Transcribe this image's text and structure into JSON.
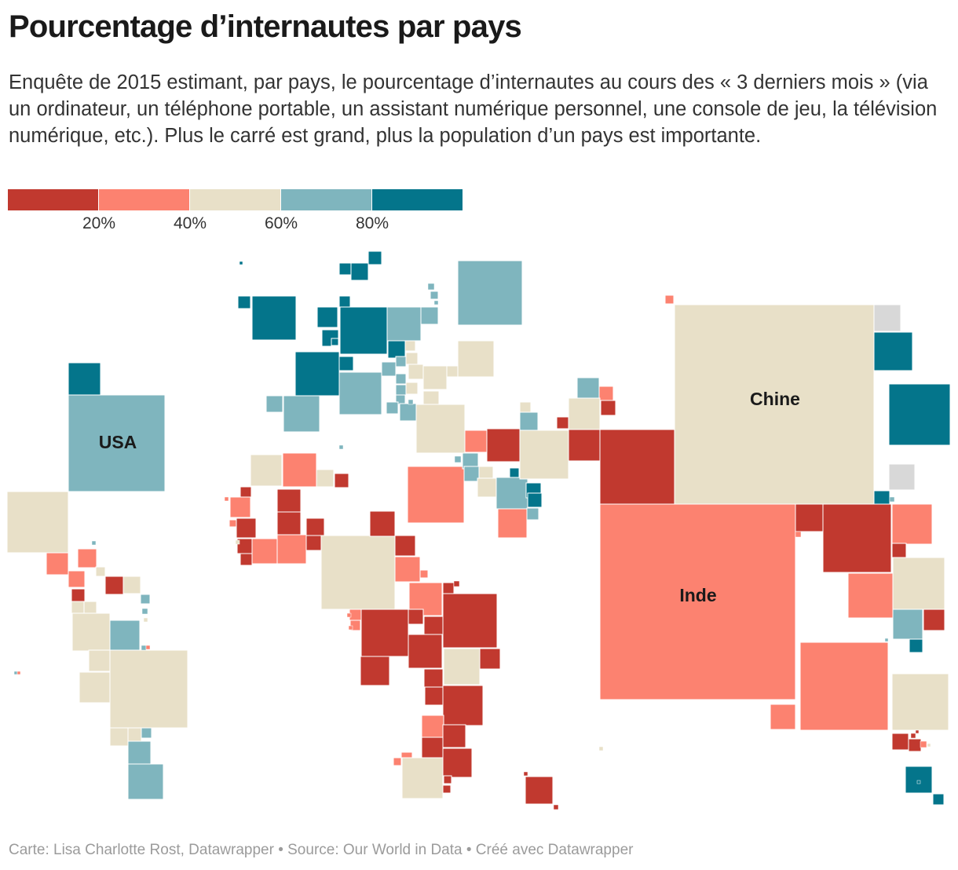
{
  "title": "Pourcentage d’internautes par pays",
  "subtitle": "Enquête de 2015 estimant, par pays, le pourcentage d’internautes au cours des « 3 derniers mois » (via un ordinateur, un téléphone portable, un assistant numérique personnel, une console de jeu, la télévision numérique, etc.). Plus le carré est grand, plus la population d’un pays est importante.",
  "colors": {
    "bin_0_20": "#c1392f",
    "bin_20_40": "#fc8270",
    "bin_40_60": "#e8e0c8",
    "bin_60_80": "#7fb5be",
    "bin_80_100": "#04758b",
    "no_data": "#d8d8d8"
  },
  "legend": {
    "bins": [
      "bin_0_20",
      "bin_20_40",
      "bin_40_60",
      "bin_60_80",
      "bin_80_100"
    ],
    "ticks": [
      "20%",
      "40%",
      "60%",
      "80%"
    ]
  },
  "map": {
    "labels": {
      "usa": "USA",
      "china": "Chine",
      "india": "Inde"
    }
  },
  "footer": "Carte: Lisa Charlotte Rost, Datawrapper • Source: Our World in Data • Créé avec Datawrapper"
}
